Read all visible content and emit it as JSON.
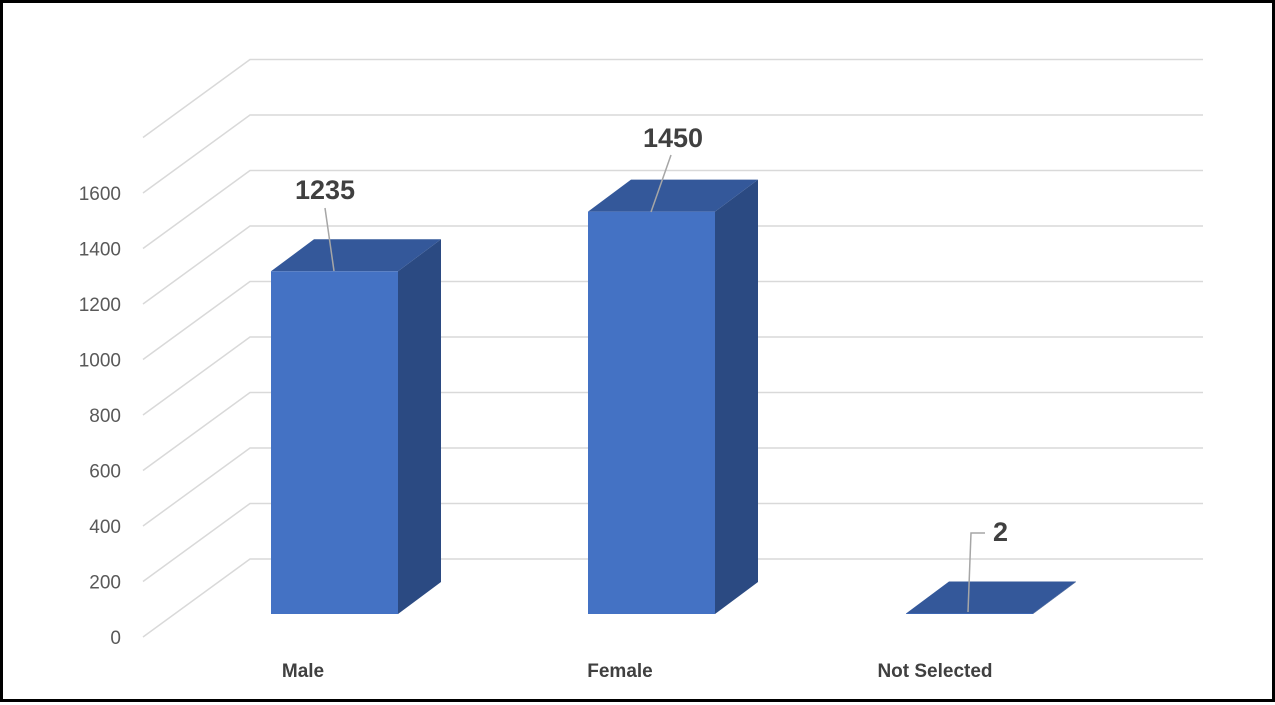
{
  "chart_data": {
    "type": "bar",
    "style": "3d-column",
    "categories": [
      "Male",
      "Female",
      "Not Selected"
    ],
    "values": [
      1235,
      1450,
      2
    ],
    "data_labels": [
      "1235",
      "1450",
      "2"
    ],
    "ylim": [
      0,
      1800
    ],
    "y_ticks": [
      0,
      200,
      400,
      600,
      800,
      1000,
      1200,
      1400,
      1600
    ],
    "y_tick_labels": [
      "0",
      "200",
      "400",
      "600",
      "800",
      "1000",
      "1200",
      "1400",
      "1600"
    ],
    "grid": true,
    "legend": "none",
    "colors": {
      "bar_front": "#4472C4",
      "bar_top": "#34589A",
      "bar_side": "#2B4A82",
      "gridline": "#D9D9D9",
      "leader_line": "#A6A6A6"
    }
  }
}
